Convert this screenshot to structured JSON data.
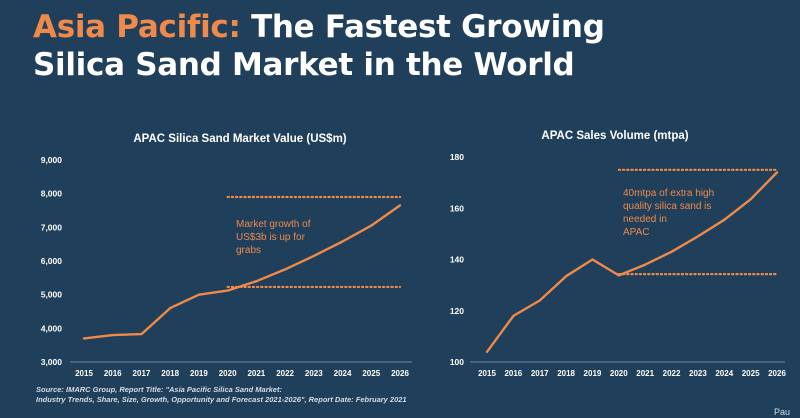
{
  "header": {
    "title_accent": "Asia Pacific:",
    "title_rest": " The Fastest Growing",
    "title_line2": "Silica Sand Market in the World"
  },
  "colors": {
    "background": "#1f3f5b",
    "accent": "#ef8a4a",
    "text": "#ffffff",
    "axis": "#8fa3b5"
  },
  "chart_data": [
    {
      "type": "line",
      "title": "APAC Silica Sand Market Value (US$m)",
      "x": [
        2015,
        2016,
        2017,
        2018,
        2019,
        2020,
        2021,
        2022,
        2023,
        2024,
        2025,
        2026
      ],
      "series": [
        {
          "values": [
            3700,
            3800,
            3830,
            4600,
            5000,
            5120,
            5400,
            5750,
            6150,
            6580,
            7050,
            7650
          ]
        }
      ],
      "ylim": [
        3000,
        9000
      ],
      "yticks": [
        "3,000",
        "4,000",
        "5,000",
        "6,000",
        "7,000",
        "8,000",
        "9,000"
      ],
      "reference_lines": [
        {
          "y": 7900,
          "x_from": 2020,
          "x_to": 2026,
          "style": "dotted"
        },
        {
          "y": 5230,
          "x_from": 2020,
          "x_to": 2026,
          "style": "dotted"
        }
      ],
      "annotation": [
        "Market growth of",
        "US$3b is up for",
        "grabs"
      ],
      "grid": false
    },
    {
      "type": "line",
      "title": "APAC Sales Volume (mtpa)",
      "x": [
        2015,
        2016,
        2017,
        2018,
        2019,
        2020,
        2021,
        2022,
        2023,
        2024,
        2025,
        2026
      ],
      "series": [
        {
          "values": [
            104,
            118,
            124,
            133.5,
            140,
            133.8,
            138,
            143,
            149,
            155.5,
            163.5,
            174
          ]
        }
      ],
      "ylim": [
        100,
        180
      ],
      "yticks": [
        "100",
        "120",
        "140",
        "160",
        "180"
      ],
      "reference_lines": [
        {
          "y": 175,
          "x_from": 2020,
          "x_to": 2026,
          "style": "dotted"
        },
        {
          "y": 134.3,
          "x_from": 2020,
          "x_to": 2026,
          "style": "dotted"
        }
      ],
      "annotation": [
        "40mtpa of extra high",
        "quality silica sand is",
        "needed in",
        "APAC"
      ],
      "grid": false
    }
  ],
  "source": {
    "line1": "Source: IMARC Group, Report Title: \"Asia Pacific Silica Sand Market:",
    "line2": "Industry Trends, Share, Size, Growth, Opportunity and Forecast 2021-2026\", Report Date: February 2021"
  },
  "logo_text": "Pau"
}
